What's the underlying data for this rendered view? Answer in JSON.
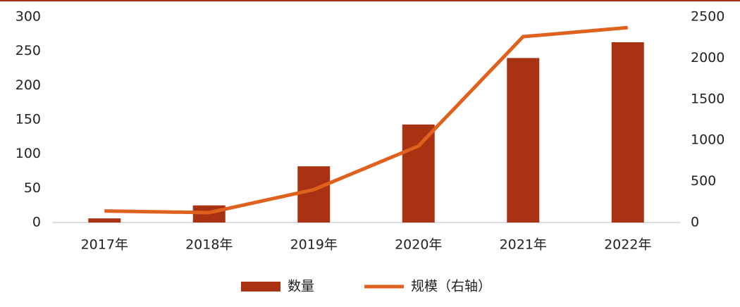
{
  "chart_data": {
    "type": "bar_line",
    "categories": [
      "2017年",
      "2018年",
      "2019年",
      "2020年",
      "2021年",
      "2022年"
    ],
    "series": [
      {
        "name": "数量",
        "color": "#a93212",
        "type": "bar",
        "values": [
          6,
          25,
          82,
          143,
          240,
          263
        ]
      },
      {
        "name": "规模（右轴）",
        "color": "#e0601e",
        "type": "line",
        "axis": "y2",
        "values": [
          140,
          120,
          400,
          930,
          2260,
          2370
        ]
      }
    ],
    "ylim": [
      0,
      300
    ],
    "yticks": [
      0,
      50,
      100,
      150,
      200,
      250,
      300
    ],
    "y2lim": [
      0,
      2500
    ],
    "y2ticks": [
      0,
      500,
      1000,
      1500,
      2000,
      2500
    ],
    "legend": "bottom"
  }
}
